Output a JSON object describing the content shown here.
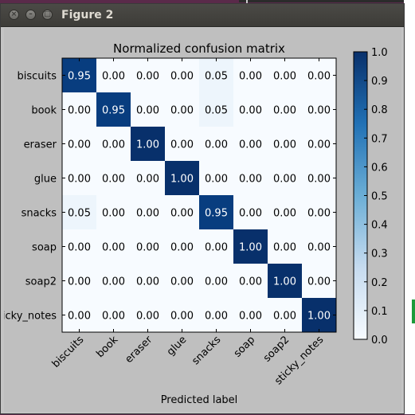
{
  "window": {
    "title": "Figure 2",
    "controls": [
      "×",
      "–",
      "□"
    ]
  },
  "chart_data": {
    "type": "heatmap",
    "title": "Normalized confusion matrix",
    "xlabel": "Predicted label",
    "ylabel": "",
    "x_categories": [
      "biscuits",
      "book",
      "eraser",
      "glue",
      "snacks",
      "soap",
      "soap2",
      "sticky_notes"
    ],
    "y_categories": [
      "biscuits",
      "book",
      "eraser",
      "glue",
      "snacks",
      "soap",
      "soap2",
      "sticky_notes"
    ],
    "y_tick_labels": [
      "biscuits",
      "book",
      "eraser",
      "glue",
      "snacks",
      "soap",
      "soap2",
      "icky_notes"
    ],
    "values": [
      [
        0.95,
        0.0,
        0.0,
        0.0,
        0.05,
        0.0,
        0.0,
        0.0
      ],
      [
        0.0,
        0.95,
        0.0,
        0.0,
        0.05,
        0.0,
        0.0,
        0.0
      ],
      [
        0.0,
        0.0,
        1.0,
        0.0,
        0.0,
        0.0,
        0.0,
        0.0
      ],
      [
        0.0,
        0.0,
        0.0,
        1.0,
        0.0,
        0.0,
        0.0,
        0.0
      ],
      [
        0.05,
        0.0,
        0.0,
        0.0,
        0.95,
        0.0,
        0.0,
        0.0
      ],
      [
        0.0,
        0.0,
        0.0,
        0.0,
        0.0,
        1.0,
        0.0,
        0.0
      ],
      [
        0.0,
        0.0,
        0.0,
        0.0,
        0.0,
        0.0,
        1.0,
        0.0
      ],
      [
        0.0,
        0.0,
        0.0,
        0.0,
        0.0,
        0.0,
        0.0,
        1.0
      ]
    ],
    "colorbar": {
      "min": 0.0,
      "max": 1.0,
      "ticks": [
        "0.0",
        "0.1",
        "0.2",
        "0.3",
        "0.4",
        "0.5",
        "0.6",
        "0.7",
        "0.8",
        "0.9",
        "1.0"
      ],
      "colormap": "Blues"
    },
    "colors": {
      "low": "#f7fbff",
      "high": "#08306b"
    }
  }
}
